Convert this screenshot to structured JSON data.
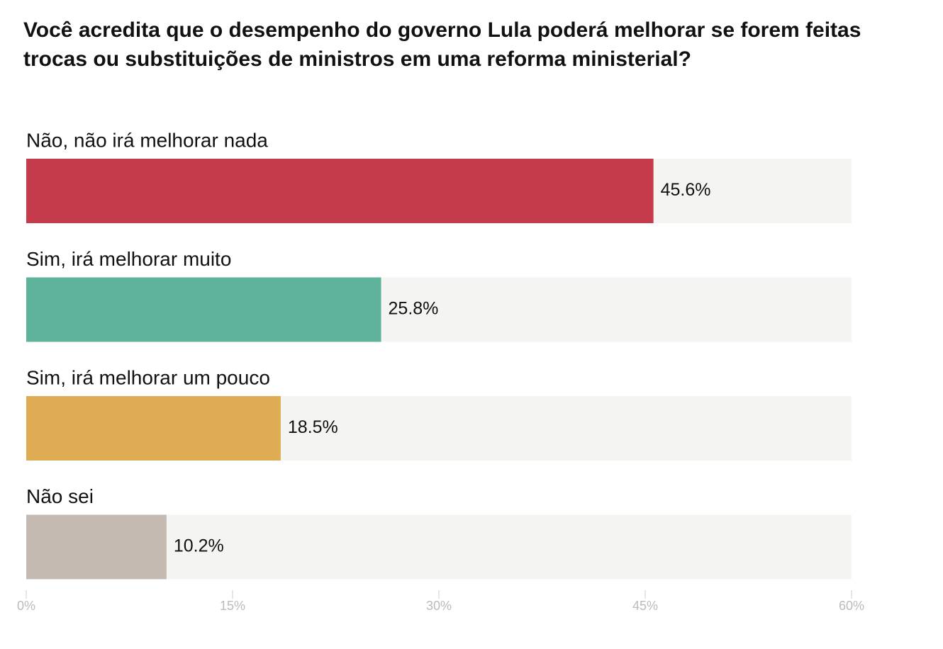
{
  "chart_data": {
    "type": "bar",
    "orientation": "horizontal",
    "title": "Você acredita que o desempenho do governo Lula poderá melhorar se forem feitas trocas ou substituições de ministros em uma reforma ministerial?",
    "categories": [
      "Não, não irá melhorar nada",
      "Sim, irá melhorar muito",
      "Sim, irá melhorar um pouco",
      "Não sei"
    ],
    "values": [
      45.6,
      25.8,
      18.5,
      10.2
    ],
    "value_labels": [
      "45.6%",
      "25.8%",
      "18.5%",
      "10.2%"
    ],
    "colors": [
      "#c63b4b",
      "#5fb39b",
      "#deac53",
      "#c5bab2"
    ],
    "xlim": [
      0,
      60
    ],
    "xticks": [
      {
        "value": 0,
        "label": "0%"
      },
      {
        "value": 15,
        "label": "15%"
      },
      {
        "value": 30,
        "label": "30%"
      },
      {
        "value": 45,
        "label": "45%"
      },
      {
        "value": 60,
        "label": "60%"
      }
    ]
  }
}
